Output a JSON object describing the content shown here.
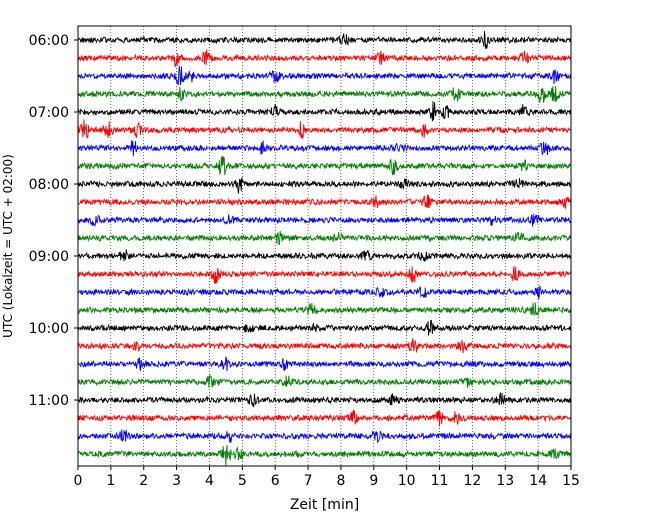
{
  "chart_data": {
    "type": "line",
    "xlabel": "Zeit  [min]",
    "ylabel": "UTC (Lokalzeit = UTC + 02:00)",
    "xlim": [
      0,
      15
    ],
    "x_ticks": [
      0,
      1,
      2,
      3,
      4,
      5,
      6,
      7,
      8,
      9,
      10,
      11,
      12,
      13,
      14,
      15
    ],
    "y_time_ticks": [
      "06:00",
      "07:00",
      "08:00",
      "09:00",
      "10:00",
      "11:00"
    ],
    "start_time": "06:00",
    "trace_interval_min": 15,
    "trace_count": 24,
    "trace_colors": [
      "#000000",
      "#ff0000",
      "#0000ff",
      "#008000"
    ],
    "grid": {
      "x": true,
      "y": false,
      "style": "dotted"
    },
    "legend": "none",
    "series": [
      {
        "start": "06:00",
        "color": "#000000",
        "bursts": [
          [
            8.1,
            5.0
          ],
          [
            12.4,
            7.0
          ]
        ]
      },
      {
        "start": "06:15",
        "color": "#ff0000",
        "bursts": [
          [
            3.0,
            6.5
          ],
          [
            3.9,
            7.0
          ],
          [
            9.2,
            5.0
          ],
          [
            13.6,
            6.0
          ]
        ]
      },
      {
        "start": "06:30",
        "color": "#0000ff",
        "bursts": [
          [
            3.1,
            8.0
          ],
          [
            3.4,
            6.0
          ],
          [
            6.0,
            6.0
          ],
          [
            14.5,
            6.0
          ]
        ]
      },
      {
        "start": "06:45",
        "color": "#008000",
        "bursts": [
          [
            3.1,
            5.0
          ],
          [
            11.5,
            6.0
          ],
          [
            14.1,
            9.0
          ],
          [
            14.5,
            7.0
          ]
        ]
      },
      {
        "start": "07:00",
        "color": "#000000",
        "bursts": [
          [
            10.8,
            9.0
          ],
          [
            11.2,
            6.0
          ],
          [
            13.6,
            8.0
          ],
          [
            6.0,
            5.0
          ]
        ]
      },
      {
        "start": "07:15",
        "color": "#ff0000",
        "bursts": [
          [
            0.2,
            9.0
          ],
          [
            0.9,
            7.5
          ],
          [
            1.8,
            6.0
          ],
          [
            6.8,
            7.0
          ],
          [
            10.5,
            6.0
          ]
        ]
      },
      {
        "start": "07:30",
        "color": "#0000ff",
        "bursts": [
          [
            1.7,
            8.0
          ],
          [
            5.6,
            5.0
          ],
          [
            9.8,
            5.0
          ],
          [
            14.2,
            7.0
          ]
        ]
      },
      {
        "start": "07:45",
        "color": "#008000",
        "bursts": [
          [
            4.4,
            9.0
          ],
          [
            9.6,
            6.0
          ],
          [
            13.6,
            5.0
          ]
        ]
      },
      {
        "start": "08:00",
        "color": "#000000",
        "bursts": [
          [
            4.9,
            7.0
          ],
          [
            9.9,
            6.0
          ],
          [
            13.4,
            6.0
          ]
        ]
      },
      {
        "start": "08:15",
        "color": "#ff0000",
        "bursts": [
          [
            9.1,
            6.0
          ],
          [
            10.6,
            6.0
          ],
          [
            14.9,
            7.0
          ]
        ]
      },
      {
        "start": "08:30",
        "color": "#0000ff",
        "bursts": [
          [
            0.5,
            7.0
          ],
          [
            4.6,
            5.0
          ],
          [
            12.6,
            5.0
          ],
          [
            13.9,
            6.0
          ]
        ]
      },
      {
        "start": "08:45",
        "color": "#008000",
        "bursts": [
          [
            6.1,
            5.0
          ],
          [
            7.9,
            4.5
          ],
          [
            13.4,
            5.0
          ]
        ]
      },
      {
        "start": "09:00",
        "color": "#000000",
        "bursts": [
          [
            1.4,
            6.0
          ],
          [
            8.8,
            5.0
          ],
          [
            10.5,
            5.5
          ]
        ]
      },
      {
        "start": "09:15",
        "color": "#ff0000",
        "bursts": [
          [
            4.2,
            8.0
          ],
          [
            10.2,
            6.5
          ],
          [
            13.3,
            6.0
          ]
        ]
      },
      {
        "start": "09:30",
        "color": "#0000ff",
        "bursts": [
          [
            9.2,
            5.0
          ],
          [
            10.5,
            6.0
          ],
          [
            14.0,
            5.0
          ]
        ]
      },
      {
        "start": "09:45",
        "color": "#008000",
        "bursts": [
          [
            7.1,
            5.0
          ],
          [
            13.9,
            7.0
          ]
        ]
      },
      {
        "start": "10:00",
        "color": "#000000",
        "bursts": [
          [
            5.2,
            5.0
          ],
          [
            7.2,
            5.0
          ],
          [
            10.7,
            6.0
          ]
        ]
      },
      {
        "start": "10:15",
        "color": "#ff0000",
        "bursts": [
          [
            1.8,
            5.0
          ],
          [
            10.2,
            8.0
          ],
          [
            11.7,
            5.0
          ]
        ]
      },
      {
        "start": "10:30",
        "color": "#0000ff",
        "bursts": [
          [
            1.9,
            5.0
          ],
          [
            4.5,
            5.0
          ],
          [
            6.3,
            4.5
          ]
        ]
      },
      {
        "start": "10:45",
        "color": "#008000",
        "bursts": [
          [
            4.0,
            6.0
          ],
          [
            6.4,
            5.0
          ],
          [
            11.8,
            4.5
          ]
        ]
      },
      {
        "start": "11:00",
        "color": "#000000",
        "bursts": [
          [
            5.3,
            5.0
          ],
          [
            9.6,
            4.5
          ],
          [
            12.9,
            4.5
          ]
        ]
      },
      {
        "start": "11:15",
        "color": "#ff0000",
        "bursts": [
          [
            8.4,
            6.0
          ],
          [
            11.0,
            7.0
          ],
          [
            11.5,
            5.0
          ]
        ]
      },
      {
        "start": "11:30",
        "color": "#0000ff",
        "bursts": [
          [
            1.4,
            6.0
          ],
          [
            4.6,
            5.0
          ],
          [
            9.1,
            5.0
          ]
        ]
      },
      {
        "start": "11:45",
        "color": "#008000",
        "bursts": [
          [
            4.5,
            10.0
          ],
          [
            4.9,
            6.0
          ],
          [
            14.5,
            5.0
          ]
        ]
      }
    ]
  }
}
